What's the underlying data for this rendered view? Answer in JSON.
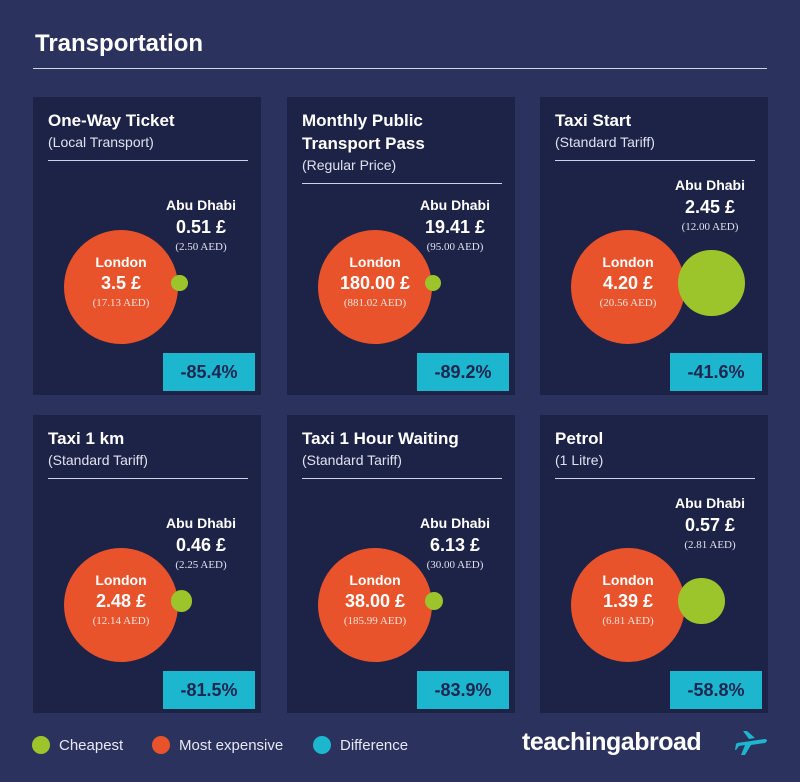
{
  "title": "Transportation",
  "cards": [
    {
      "title": "One-Way Ticket",
      "subtitle": "(Local Transport)",
      "city_a": "London",
      "price_a": "3.5 £",
      "aed_a": "(17.13 AED)",
      "city_b": "Abu Dhabi",
      "price_b": "0.51 £",
      "aed_b": "(2.50 AED)",
      "difference": "-85.4%"
    },
    {
      "title": "Monthly Public Transport Pass",
      "subtitle": "(Regular Price)",
      "city_a": "London",
      "price_a": "180.00 £",
      "aed_a": "(881.02 AED)",
      "city_b": "Abu Dhabi",
      "price_b": "19.41 £",
      "aed_b": "(95.00 AED)",
      "difference": "-89.2%"
    },
    {
      "title": "Taxi Start",
      "subtitle": "(Standard Tariff)",
      "city_a": "London",
      "price_a": "4.20 £",
      "aed_a": "(20.56 AED)",
      "city_b": "Abu Dhabi",
      "price_b": "2.45 £",
      "aed_b": "(12.00 AED)",
      "difference": "-41.6%"
    },
    {
      "title": "Taxi 1 km",
      "subtitle": "(Standard Tariff)",
      "city_a": "London",
      "price_a": "2.48 £",
      "aed_a": "(12.14 AED)",
      "city_b": "Abu Dhabi",
      "price_b": "0.46 £",
      "aed_b": "(2.25 AED)",
      "difference": "-81.5%"
    },
    {
      "title": "Taxi 1 Hour Waiting",
      "subtitle": "(Standard Tariff)",
      "city_a": "London",
      "price_a": "38.00 £",
      "aed_a": "(185.99 AED)",
      "city_b": "Abu Dhabi",
      "price_b": "6.13 £",
      "aed_b": "(30.00 AED)",
      "difference": "-83.9%"
    },
    {
      "title": "Petrol",
      "subtitle": "(1 Litre)",
      "city_a": "London",
      "price_a": "1.39 £",
      "aed_a": "(6.81 AED)",
      "city_b": "Abu Dhabi",
      "price_b": "0.57 £",
      "aed_b": "(2.81 AED)",
      "difference": "-58.8%"
    }
  ],
  "legend": [
    {
      "label": "Cheapest",
      "color": "#9cc52c"
    },
    {
      "label": "Most expensive",
      "color": "#e8532b"
    },
    {
      "label": "Difference",
      "color": "#1db6cf"
    }
  ],
  "logo": "teachingabroad"
}
